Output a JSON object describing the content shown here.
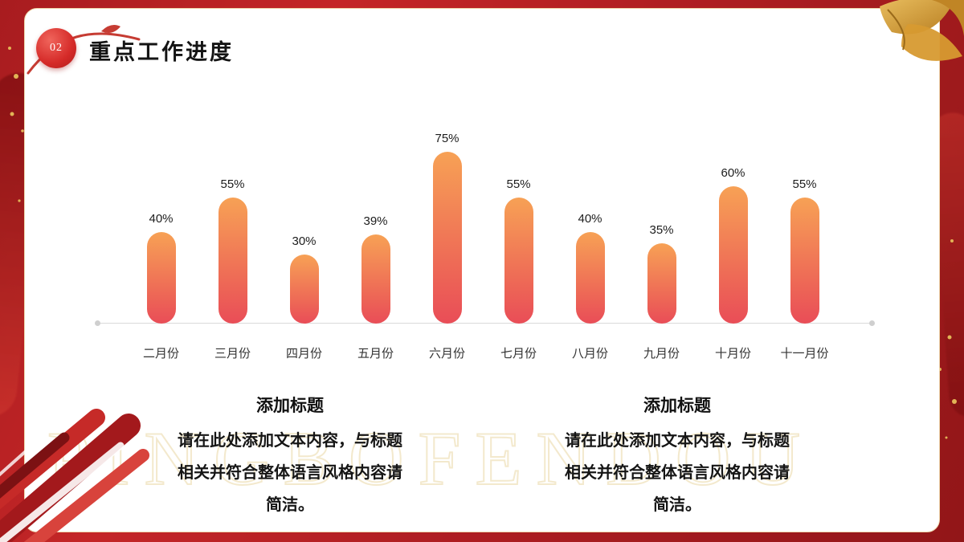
{
  "slide": {
    "badge_number": "02",
    "title": "重点工作进度",
    "watermark": "PINGBOFENDOU"
  },
  "chart_data": {
    "type": "bar",
    "categories": [
      "二月份",
      "三月份",
      "四月份",
      "五月份",
      "六月份",
      "七月份",
      "八月份",
      "九月份",
      "十月份",
      "十一月份"
    ],
    "values": [
      40,
      55,
      30,
      39,
      75,
      55,
      40,
      35,
      60,
      55
    ],
    "data_labels": [
      "40%",
      "55%",
      "30%",
      "39%",
      "75%",
      "55%",
      "40%",
      "35%",
      "60%",
      "55%"
    ],
    "unit": "%",
    "title": "",
    "xlabel": "",
    "ylabel": "",
    "ylim": [
      0,
      100
    ],
    "grid": false,
    "legend": false,
    "bar_color_top": "#F7A155",
    "bar_color_bottom": "#E94D57",
    "baseline_color": "#D9D9D9"
  },
  "text_blocks": [
    {
      "heading": "添加标题",
      "lines": [
        "请在此处添加文本内容，与标题",
        "相关并符合整体语言风格内容请",
        "简洁。"
      ]
    },
    {
      "heading": "添加标题",
      "lines": [
        "请在此处添加文本内容，与标题",
        "相关并符合整体语言风格内容请",
        "简洁。"
      ]
    }
  ],
  "colors": {
    "background_red": "#B41F22",
    "accent_gold": "#D8A041",
    "card_white": "#FFFFFF",
    "text_dark": "#111111"
  }
}
